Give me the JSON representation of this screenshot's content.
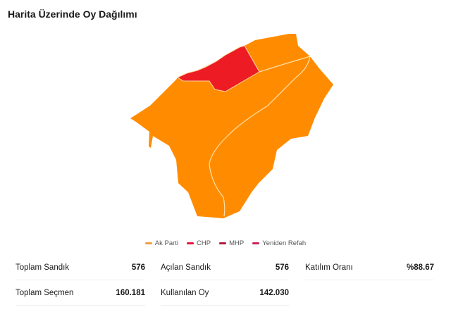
{
  "title": "Harita Üzerinde Oy Dağılımı",
  "map": {
    "regions": [
      {
        "party": "Ak Parti",
        "color": "#ff8c00"
      },
      {
        "party": "CHP",
        "color": "#ed1c24"
      }
    ]
  },
  "legend": [
    {
      "label": "Ak Parti",
      "color": "#f0a040"
    },
    {
      "label": "CHP",
      "color": "#e3173e"
    },
    {
      "label": "MHP",
      "color": "#b01c3c"
    },
    {
      "label": "Yeniden Refah",
      "color": "#c8245a"
    }
  ],
  "stats": [
    {
      "label": "Toplam Sandık",
      "value": "576"
    },
    {
      "label": "Açılan Sandık",
      "value": "576"
    },
    {
      "label": "Katılım Oranı",
      "value": "%88.67"
    },
    {
      "label": "Toplam Seçmen",
      "value": "160.181"
    },
    {
      "label": "Kullanılan Oy",
      "value": "142.030"
    }
  ]
}
